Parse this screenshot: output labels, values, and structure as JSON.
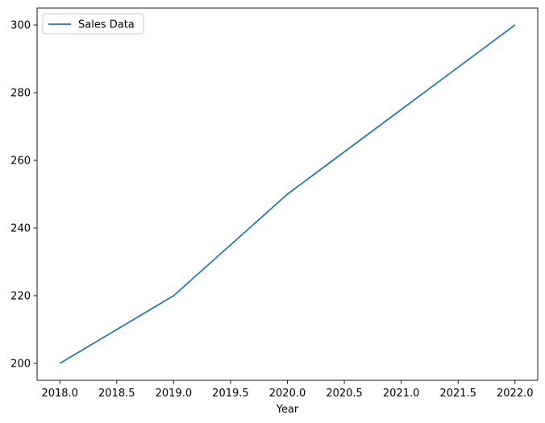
{
  "chart_data": {
    "type": "line",
    "title": "",
    "xlabel": "Year",
    "ylabel": "",
    "x": [
      2018,
      2019,
      2020,
      2021,
      2022
    ],
    "series": [
      {
        "name": "Sales Data",
        "color": "#1f77b4",
        "values": [
          200,
          220,
          250,
          275,
          300
        ]
      }
    ],
    "xlim": [
      2017.8,
      2022.2
    ],
    "ylim": [
      195,
      305
    ],
    "xticks": [
      2018.0,
      2018.5,
      2019.0,
      2019.5,
      2020.0,
      2020.5,
      2021.0,
      2021.5,
      2022.0
    ],
    "xtick_labels": [
      "2018.0",
      "2018.5",
      "2019.0",
      "2019.5",
      "2020.0",
      "2020.5",
      "2021.0",
      "2021.5",
      "2022.0"
    ],
    "yticks": [
      200,
      220,
      240,
      260,
      280,
      300
    ],
    "ytick_labels": [
      "200",
      "220",
      "240",
      "260",
      "280",
      "300"
    ],
    "grid": false,
    "legend": "upper-left"
  }
}
